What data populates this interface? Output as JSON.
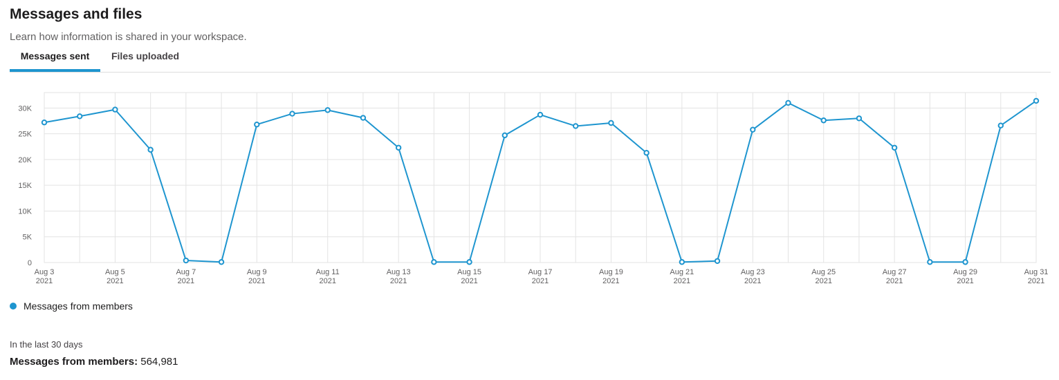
{
  "header": {
    "title": "Messages and files",
    "subtitle": "Learn how information is shared in your workspace."
  },
  "tabs": [
    {
      "label": "Messages sent",
      "active": true
    },
    {
      "label": "Files uploaded",
      "active": false
    }
  ],
  "colors": {
    "accent": "#1e95cf",
    "grid": "#e3e3e3"
  },
  "chart_data": {
    "type": "line",
    "title": "",
    "xlabel": "",
    "ylabel": "",
    "ylim": [
      0,
      33000
    ],
    "yticks": [
      {
        "value": 0,
        "label": "0"
      },
      {
        "value": 5000,
        "label": "5K"
      },
      {
        "value": 10000,
        "label": "10K"
      },
      {
        "value": 15000,
        "label": "15K"
      },
      {
        "value": 20000,
        "label": "20K"
      },
      {
        "value": 25000,
        "label": "25K"
      },
      {
        "value": 30000,
        "label": "30K"
      }
    ],
    "xtick_labels": [
      [
        "Aug 3",
        "2021"
      ],
      [
        "Aug 5",
        "2021"
      ],
      [
        "Aug 7",
        "2021"
      ],
      [
        "Aug 9",
        "2021"
      ],
      [
        "Aug 11",
        "2021"
      ],
      [
        "Aug 13",
        "2021"
      ],
      [
        "Aug 15",
        "2021"
      ],
      [
        "Aug 17",
        "2021"
      ],
      [
        "Aug 19",
        "2021"
      ],
      [
        "Aug 21",
        "2021"
      ],
      [
        "Aug 23",
        "2021"
      ],
      [
        "Aug 25",
        "2021"
      ],
      [
        "Aug 27",
        "2021"
      ],
      [
        "Aug 29",
        "2021"
      ],
      [
        "Aug 31",
        "2021"
      ]
    ],
    "grid": true,
    "legend_position": "bottom-left",
    "x": [
      "2021-08-03",
      "2021-08-04",
      "2021-08-05",
      "2021-08-06",
      "2021-08-07",
      "2021-08-08",
      "2021-08-09",
      "2021-08-10",
      "2021-08-11",
      "2021-08-12",
      "2021-08-13",
      "2021-08-14",
      "2021-08-15",
      "2021-08-16",
      "2021-08-17",
      "2021-08-18",
      "2021-08-19",
      "2021-08-20",
      "2021-08-21",
      "2021-08-22",
      "2021-08-23",
      "2021-08-24",
      "2021-08-25",
      "2021-08-26",
      "2021-08-27",
      "2021-08-28",
      "2021-08-29",
      "2021-08-30",
      "2021-08-31"
    ],
    "series": [
      {
        "name": "Messages from members",
        "values": [
          27200,
          28400,
          29700,
          21900,
          400,
          100,
          26800,
          28900,
          29600,
          28100,
          22300,
          100,
          100,
          24700,
          28700,
          26500,
          27100,
          21300,
          100,
          300,
          25800,
          31000,
          27600,
          28000,
          22300,
          100,
          100,
          26600,
          31400
        ]
      }
    ]
  },
  "legend": {
    "label": "Messages from members"
  },
  "summary": {
    "period": "In the last 30 days",
    "label": "Messages from members:",
    "value": "564,981"
  }
}
